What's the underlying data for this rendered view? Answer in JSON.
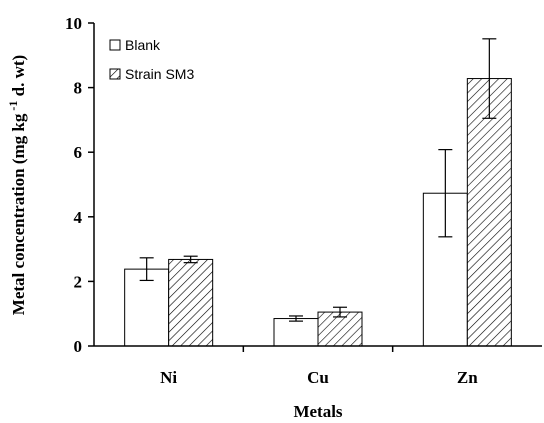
{
  "chart_data": {
    "type": "bar",
    "categories": [
      "Ni",
      "Cu",
      "Zn"
    ],
    "series": [
      {
        "name": "Blank",
        "values": [
          2.38,
          0.85,
          4.73
        ],
        "errors": [
          0.35,
          0.08,
          1.35
        ],
        "fill": "#ffffff",
        "pattern": "none"
      },
      {
        "name": "Strain SM3",
        "values": [
          2.68,
          1.05,
          8.28
        ],
        "errors": [
          0.1,
          0.15,
          1.23
        ],
        "fill": "hatched",
        "pattern": "diagonal"
      }
    ],
    "xlabel": "Metals",
    "ylabel_parts": [
      "Metal concentration (mg kg",
      " -1",
      " d. wt)"
    ],
    "ylim": [
      0,
      10
    ],
    "yticks": [
      "0",
      "2",
      "4",
      "6",
      "8",
      "10"
    ],
    "grid": false,
    "legend_position": "top-left",
    "colors": {
      "axis": "#000000",
      "bar_stroke": "#000000",
      "hatch": "#000000"
    }
  }
}
